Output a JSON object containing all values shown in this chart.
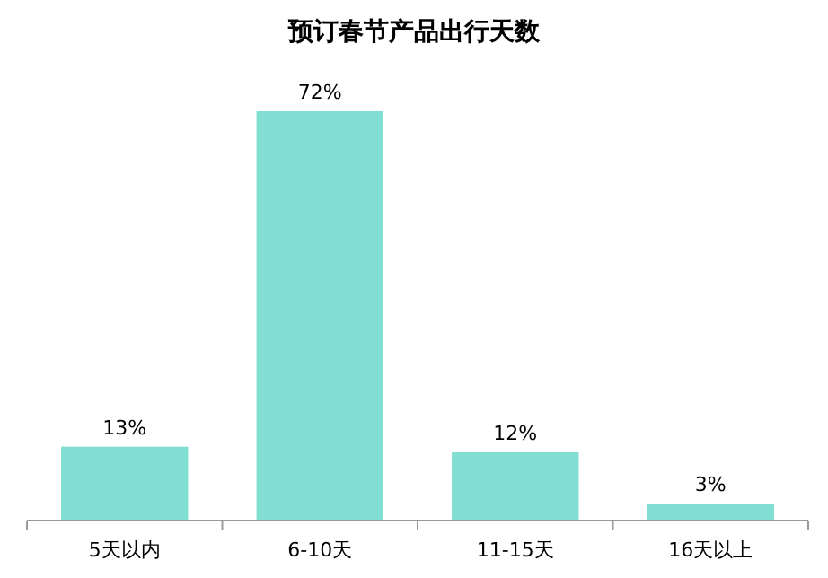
{
  "chart_data": {
    "type": "bar",
    "title": "预订春节产品出行天数",
    "categories": [
      "5天以内",
      "6-10天",
      "11-15天",
      "16天以上"
    ],
    "values": [
      13,
      72,
      12,
      3
    ],
    "value_labels": [
      "13%",
      "72%",
      "12%",
      "3%"
    ],
    "color": "#80ded2"
  }
}
